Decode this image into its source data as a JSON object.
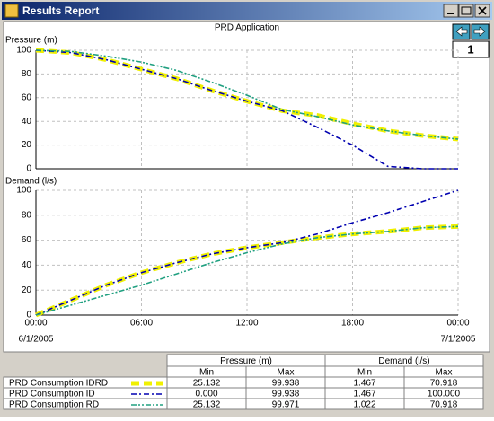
{
  "window": {
    "title": "Results Report",
    "page": "1"
  },
  "chart_data": [
    {
      "type": "line",
      "title": "PRD Application",
      "y_label": "Pressure (m)",
      "x": [
        0,
        2,
        4,
        6,
        8,
        10,
        12,
        14,
        16,
        18,
        20,
        22,
        24
      ],
      "xlim": [
        0,
        24
      ],
      "xticks": [
        0,
        6,
        12,
        18,
        24
      ],
      "ylim": [
        0,
        100
      ],
      "yticks": [
        0,
        20,
        40,
        60,
        80,
        100
      ],
      "grid": true,
      "series": [
        {
          "name": "PRD Consumption IDRD",
          "color": "#f0f000",
          "dash": "dashed",
          "values": [
            100,
            98,
            92,
            84,
            76,
            66,
            57,
            49,
            45,
            38,
            32,
            28,
            25
          ]
        },
        {
          "name": "PRD Consumption ID",
          "color": "#0000b0",
          "dash": "dashdot",
          "values": [
            100,
            98,
            92,
            84,
            76,
            66,
            57,
            49,
            35,
            20,
            2,
            0,
            0
          ]
        },
        {
          "name": "PRD Consumption RD",
          "color": "#20a080",
          "dash": "dashdotdot",
          "values": [
            100,
            99,
            95,
            90,
            83,
            73,
            62,
            50,
            44,
            37,
            32,
            28,
            25
          ]
        }
      ]
    },
    {
      "type": "line",
      "y_label": "Demand (l/s)",
      "x": [
        0,
        2,
        4,
        6,
        8,
        10,
        12,
        14,
        16,
        18,
        20,
        22,
        24
      ],
      "xlim": [
        0,
        24
      ],
      "xticks": [
        {
          "value": 0,
          "label": "00:00"
        },
        {
          "value": 6,
          "label": "06:00"
        },
        {
          "value": 12,
          "label": "12:00"
        },
        {
          "value": 18,
          "label": "18:00"
        },
        {
          "value": 24,
          "label": "00:00"
        }
      ],
      "date_labels": [
        {
          "value": 0,
          "label": "6/1/2005"
        },
        {
          "value": 24,
          "label": "7/1/2005"
        }
      ],
      "ylim": [
        0,
        100
      ],
      "yticks": [
        0,
        20,
        40,
        60,
        80,
        100
      ],
      "grid": true,
      "series": [
        {
          "color": "#f0f000",
          "dash": "dashed",
          "values": [
            0,
            12,
            24,
            34,
            42,
            49,
            54,
            58,
            62,
            65,
            67,
            70,
            71
          ]
        },
        {
          "color": "#0000b0",
          "dash": "dashdot",
          "values": [
            0,
            12,
            24,
            34,
            42,
            49,
            54,
            58,
            65,
            74,
            82,
            91,
            100
          ]
        },
        {
          "color": "#20a080",
          "dash": "dashdotdot",
          "values": [
            0,
            8,
            16,
            24,
            33,
            42,
            50,
            57,
            62,
            65,
            67,
            70,
            71
          ]
        }
      ]
    }
  ],
  "table": {
    "groups": [
      "Pressure (m)",
      "Demand (l/s)"
    ],
    "columns": [
      "Min",
      "Max",
      "Min",
      "Max"
    ],
    "rows": [
      [
        "25.132",
        "99.938",
        "1.467",
        "70.918"
      ],
      [
        "0.000",
        "99.938",
        "1.467",
        "100.000"
      ],
      [
        "25.132",
        "99.971",
        "1.022",
        "70.918"
      ]
    ]
  }
}
